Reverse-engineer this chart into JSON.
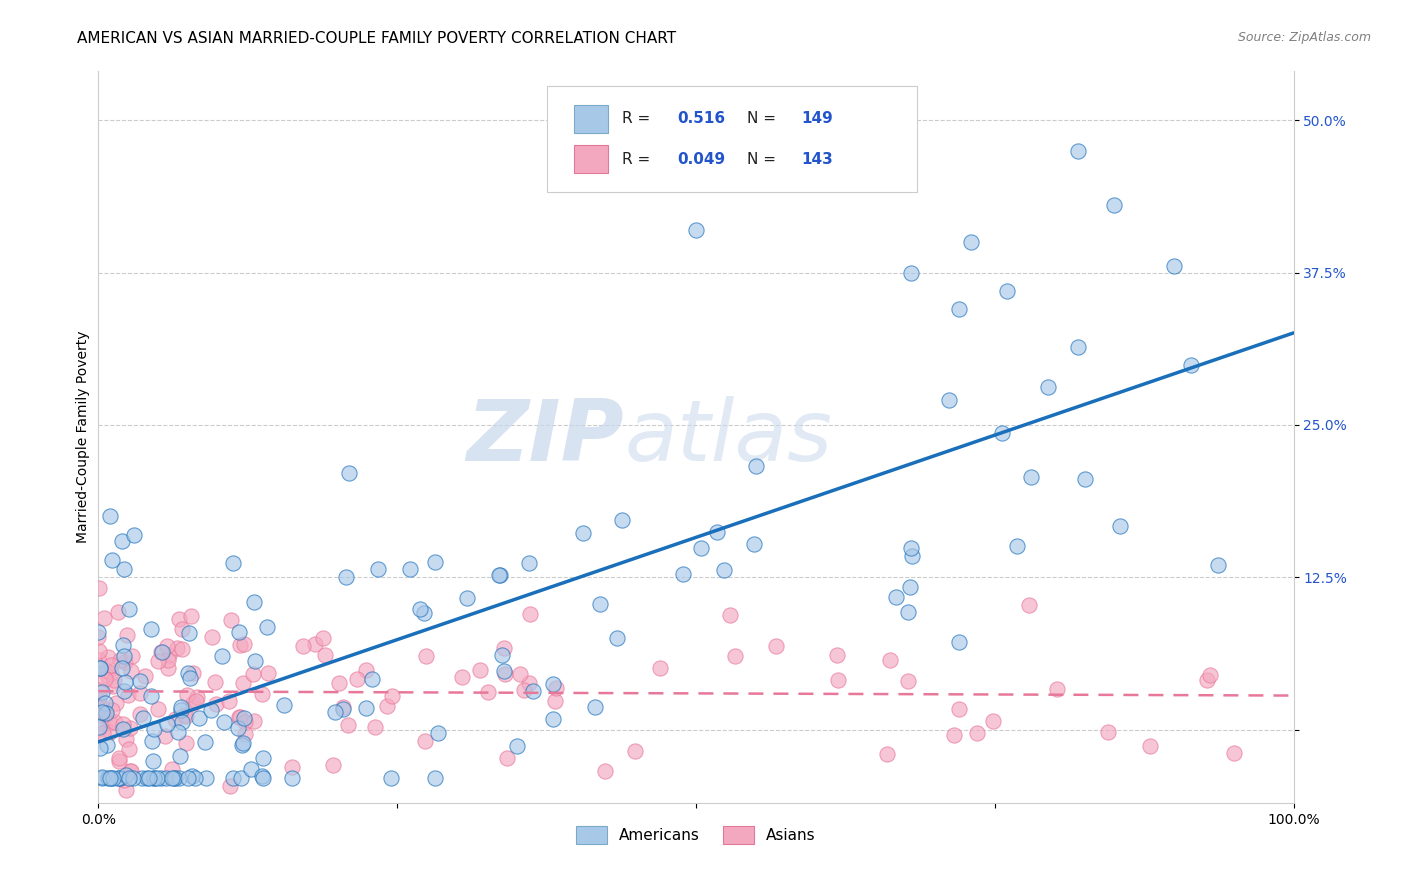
{
  "title": "AMERICAN VS ASIAN MARRIED-COUPLE FAMILY POVERTY CORRELATION CHART",
  "source": "Source: ZipAtlas.com",
  "ylabel": "Married-Couple Family Poverty",
  "xlim": [
    0,
    1
  ],
  "ylim": [
    -0.06,
    0.54
  ],
  "xtick_pos": [
    0,
    0.25,
    0.5,
    0.75,
    1.0
  ],
  "xticklabels": [
    "0.0%",
    "",
    "",
    "",
    "100.0%"
  ],
  "ytick_pos": [
    0.0,
    0.125,
    0.25,
    0.375,
    0.5
  ],
  "yticklabels": [
    "",
    "12.5%",
    "25.0%",
    "37.5%",
    "50.0%"
  ],
  "r_american": 0.516,
  "n_american": 149,
  "r_asian": 0.049,
  "n_asian": 143,
  "american_color": "#a8c8e8",
  "asian_color": "#f4a8c0",
  "american_line_color": "#1a6fba",
  "asian_line_color": "#e8789a",
  "watermark_zip": "ZIP",
  "watermark_atlas": "atlas",
  "background_color": "#ffffff",
  "grid_color": "#cccccc",
  "title_fontsize": 11,
  "axis_label_fontsize": 10,
  "tick_fontsize": 10,
  "legend_fontsize": 11,
  "source_fontsize": 9,
  "tick_color": "#2255cc"
}
